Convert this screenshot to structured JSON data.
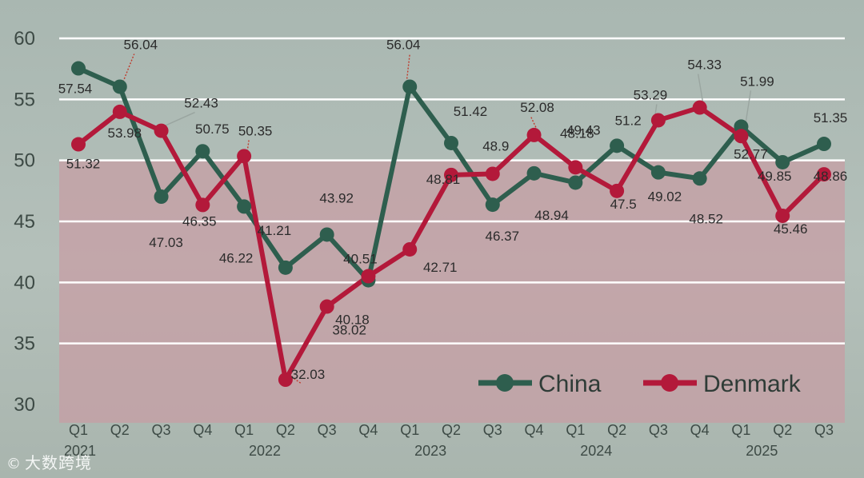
{
  "chart_data": {
    "type": "line",
    "title": "",
    "xlabel": "",
    "ylabel": "",
    "ylim": [
      30,
      60
    ],
    "yticks": [
      30,
      35,
      40,
      45,
      50,
      55,
      60
    ],
    "categories": [
      "Q1",
      "Q2",
      "Q3",
      "Q4",
      "Q1",
      "Q2",
      "Q3",
      "Q4",
      "Q1",
      "Q2",
      "Q3",
      "Q4",
      "Q1",
      "Q2",
      "Q3",
      "Q4",
      "Q1",
      "Q2",
      "Q3"
    ],
    "years": [
      {
        "label": "2021",
        "index": 0
      },
      {
        "label": "2022",
        "index": 4
      },
      {
        "label": "2023",
        "index": 8
      },
      {
        "label": "2024",
        "index": 12
      },
      {
        "label": "2025",
        "index": 16
      }
    ],
    "shaded_band": [
      28.5,
      50
    ],
    "series": [
      {
        "name": "China",
        "color": "#2e5e4e",
        "values": [
          57.54,
          56.04,
          47.03,
          50.75,
          46.22,
          41.21,
          43.92,
          40.18,
          56.04,
          51.42,
          46.37,
          48.94,
          48.18,
          51.2,
          49.02,
          48.52,
          52.77,
          49.85,
          51.35
        ],
        "labels": [
          "57.54",
          "56.04",
          "47.03",
          "50.75",
          "46.22",
          "41.21",
          "43.92",
          "40.18",
          "56.04",
          "51.42",
          "46.37",
          "48.94",
          "48.18",
          "51.2",
          "49.02",
          "48.52",
          "52.77",
          "49.85",
          "51.35"
        ]
      },
      {
        "name": "Denmark",
        "color": "#b3193a",
        "values": [
          51.32,
          53.98,
          52.43,
          46.35,
          50.35,
          32.03,
          38.02,
          40.51,
          42.71,
          48.81,
          48.9,
          52.08,
          49.43,
          47.5,
          53.29,
          54.33,
          51.99,
          45.46,
          48.86
        ],
        "labels": [
          "51.32",
          "53.98",
          "52.43",
          "46.35",
          "50.35",
          "32.03",
          "38.02",
          "40.51",
          "42.71",
          "48.81",
          "48.9",
          "52.08",
          "49.43",
          "47.5",
          "53.29",
          "54.33",
          "51.99",
          "45.46",
          "48.86"
        ]
      }
    ],
    "legend": {
      "position": "bottom-right"
    },
    "grid": true
  },
  "watermark": {
    "text": "大数跨境",
    "icon": "logo-icon",
    "glyph": "©"
  }
}
